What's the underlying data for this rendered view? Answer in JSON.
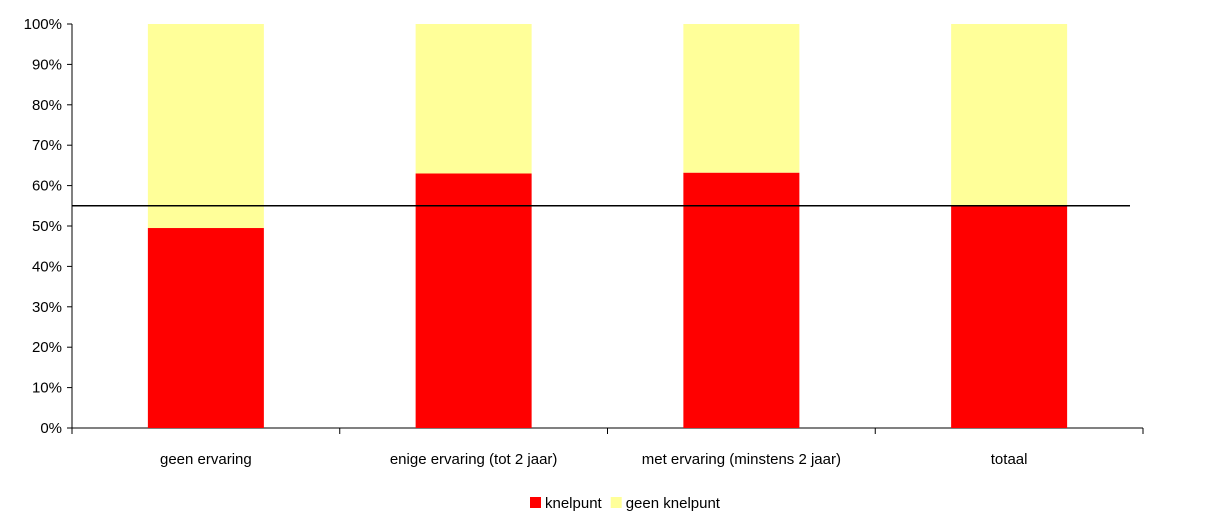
{
  "chart_data": {
    "type": "bar",
    "stacked": true,
    "percent_stacked": true,
    "categories": [
      "geen ervaring",
      "enige ervaring (tot 2 jaar)",
      "met ervaring (minstens 2 jaar)",
      "totaal"
    ],
    "series": [
      {
        "name": "knelpunt",
        "color": "#ff0000",
        "values": [
          49.5,
          63,
          63.2,
          55
        ]
      },
      {
        "name": "geen knelpunt",
        "color": "#ffff99",
        "values": [
          50.5,
          37,
          36.8,
          45
        ]
      }
    ],
    "ylim": [
      0,
      100
    ],
    "yticks": [
      "0%",
      "10%",
      "20%",
      "30%",
      "40%",
      "50%",
      "60%",
      "70%",
      "80%",
      "90%",
      "100%"
    ],
    "reference_line": {
      "value": 55,
      "color": "#000000"
    },
    "legend_position": "bottom",
    "grid": false
  }
}
